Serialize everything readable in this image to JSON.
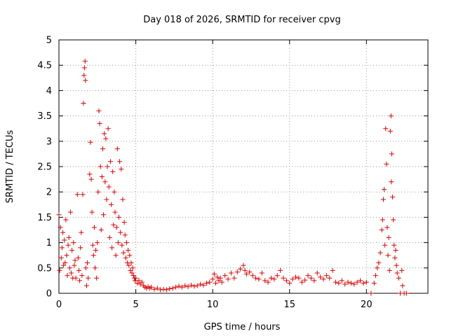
{
  "chart_data": {
    "type": "scatter",
    "title": "Day 018 of 2026, SRMTID for receiver cpvg",
    "xlabel": "GPS time / hours",
    "ylabel": "SRMTID / TECUs",
    "xlim": [
      0,
      24
    ],
    "ylim": [
      0,
      5
    ],
    "x_ticks": [
      0,
      5,
      10,
      15,
      20
    ],
    "x_tick_labels": [
      "0",
      "5",
      "10",
      "15",
      "20"
    ],
    "y_ticks": [
      0,
      0.5,
      1,
      1.5,
      2,
      2.5,
      3,
      3.5,
      4,
      4.5,
      5
    ],
    "y_tick_labels": [
      "0",
      "0.5",
      "1",
      "1.5",
      "2",
      "2.5",
      "3",
      "3.5",
      "4",
      "4.5",
      "5"
    ],
    "grid": true,
    "marker": "+",
    "color": "#e00000",
    "series": [
      {
        "name": "SRMTID",
        "points": [
          [
            0.0,
            1.55
          ],
          [
            0.05,
            0.45
          ],
          [
            0.1,
            1.3
          ],
          [
            0.15,
            0.7
          ],
          [
            0.2,
            0.9
          ],
          [
            0.25,
            1.2
          ],
          [
            0.3,
            0.55
          ],
          [
            0.35,
            1.05
          ],
          [
            0.4,
            0.6
          ],
          [
            0.45,
            1.45
          ],
          [
            0.5,
            0.75
          ],
          [
            0.55,
            0.35
          ],
          [
            0.6,
            0.95
          ],
          [
            0.65,
            1.1
          ],
          [
            0.7,
            0.5
          ],
          [
            0.75,
            1.6
          ],
          [
            0.8,
            0.4
          ],
          [
            0.85,
            0.85
          ],
          [
            0.9,
            0.3
          ],
          [
            0.95,
            1.0
          ],
          [
            1.0,
            0.55
          ],
          [
            1.05,
            0.65
          ],
          [
            1.1,
            0.3
          ],
          [
            1.2,
            1.95
          ],
          [
            1.25,
            0.7
          ],
          [
            1.3,
            0.45
          ],
          [
            1.35,
            0.25
          ],
          [
            1.4,
            0.9
          ],
          [
            1.45,
            1.2
          ],
          [
            1.5,
            0.35
          ],
          [
            1.55,
            1.95
          ],
          [
            1.6,
            3.75
          ],
          [
            1.63,
            4.3
          ],
          [
            1.66,
            4.45
          ],
          [
            1.7,
            4.58
          ],
          [
            1.72,
            4.2
          ],
          [
            1.75,
            0.5
          ],
          [
            1.8,
            0.15
          ],
          [
            1.85,
            0.6
          ],
          [
            1.9,
            0.3
          ],
          [
            2.0,
            2.35
          ],
          [
            2.05,
            2.98
          ],
          [
            2.1,
            2.25
          ],
          [
            2.15,
            1.6
          ],
          [
            2.2,
            0.95
          ],
          [
            2.25,
            0.75
          ],
          [
            2.3,
            1.3
          ],
          [
            2.35,
            0.5
          ],
          [
            2.4,
            0.85
          ],
          [
            2.45,
            0.3
          ],
          [
            2.5,
            1.0
          ],
          [
            2.55,
            2.0
          ],
          [
            2.6,
            3.6
          ],
          [
            2.65,
            3.35
          ],
          [
            2.7,
            2.5
          ],
          [
            2.75,
            1.25
          ],
          [
            2.8,
            2.3
          ],
          [
            2.85,
            2.85
          ],
          [
            2.9,
            1.55
          ],
          [
            2.95,
            3.15
          ],
          [
            3.0,
            2.2
          ],
          [
            3.05,
            3.05
          ],
          [
            3.1,
            1.85
          ],
          [
            3.15,
            2.5
          ],
          [
            3.2,
            3.25
          ],
          [
            3.25,
            2.1
          ],
          [
            3.3,
            1.1
          ],
          [
            3.35,
            2.6
          ],
          [
            3.4,
            1.75
          ],
          [
            3.45,
            0.9
          ],
          [
            3.5,
            2.4
          ],
          [
            3.55,
            1.35
          ],
          [
            3.6,
            2.0
          ],
          [
            3.65,
            1.6
          ],
          [
            3.7,
            0.75
          ],
          [
            3.75,
            1.3
          ],
          [
            3.8,
            2.85
          ],
          [
            3.85,
            1.0
          ],
          [
            3.9,
            1.5
          ],
          [
            3.95,
            2.6
          ],
          [
            4.0,
            1.2
          ],
          [
            4.05,
            2.45
          ],
          [
            4.1,
            0.95
          ],
          [
            4.15,
            1.85
          ],
          [
            4.2,
            0.8
          ],
          [
            4.25,
            1.4
          ],
          [
            4.3,
            1.15
          ],
          [
            4.35,
            0.7
          ],
          [
            4.4,
            1.0
          ],
          [
            4.45,
            0.6
          ],
          [
            4.5,
            0.85
          ],
          [
            4.55,
            0.55
          ],
          [
            4.6,
            0.75
          ],
          [
            4.65,
            0.45
          ],
          [
            4.7,
            0.6
          ],
          [
            4.75,
            0.4
          ],
          [
            4.8,
            0.5
          ],
          [
            4.85,
            0.35
          ],
          [
            4.9,
            0.3
          ],
          [
            4.95,
            0.25
          ],
          [
            5.0,
            0.3
          ],
          [
            5.1,
            0.2
          ],
          [
            5.2,
            0.25
          ],
          [
            5.3,
            0.18
          ],
          [
            5.4,
            0.22
          ],
          [
            5.5,
            0.15
          ],
          [
            5.6,
            0.12
          ],
          [
            5.7,
            0.1
          ],
          [
            5.8,
            0.13
          ],
          [
            5.9,
            0.1
          ],
          [
            6.0,
            0.12
          ],
          [
            6.2,
            0.08
          ],
          [
            6.4,
            0.1
          ],
          [
            6.6,
            0.07
          ],
          [
            6.8,
            0.08
          ],
          [
            7.0,
            0.07
          ],
          [
            7.2,
            0.09
          ],
          [
            7.4,
            0.1
          ],
          [
            7.6,
            0.12
          ],
          [
            7.8,
            0.14
          ],
          [
            8.0,
            0.12
          ],
          [
            8.2,
            0.15
          ],
          [
            8.4,
            0.13
          ],
          [
            8.6,
            0.16
          ],
          [
            8.8,
            0.14
          ],
          [
            9.0,
            0.15
          ],
          [
            9.2,
            0.18
          ],
          [
            9.4,
            0.16
          ],
          [
            9.6,
            0.2
          ],
          [
            9.8,
            0.22
          ],
          [
            10.0,
            0.28
          ],
          [
            10.1,
            0.38
          ],
          [
            10.2,
            0.2
          ],
          [
            10.3,
            0.32
          ],
          [
            10.4,
            0.25
          ],
          [
            10.5,
            0.3
          ],
          [
            10.6,
            0.22
          ],
          [
            10.8,
            0.35
          ],
          [
            11.0,
            0.28
          ],
          [
            11.2,
            0.4
          ],
          [
            11.4,
            0.3
          ],
          [
            11.6,
            0.42
          ],
          [
            11.8,
            0.48
          ],
          [
            12.0,
            0.55
          ],
          [
            12.1,
            0.45
          ],
          [
            12.2,
            0.38
          ],
          [
            12.4,
            0.42
          ],
          [
            12.6,
            0.35
          ],
          [
            12.8,
            0.3
          ],
          [
            13.0,
            0.28
          ],
          [
            13.2,
            0.4
          ],
          [
            13.4,
            0.25
          ],
          [
            13.6,
            0.22
          ],
          [
            13.8,
            0.3
          ],
          [
            14.0,
            0.28
          ],
          [
            14.2,
            0.35
          ],
          [
            14.4,
            0.45
          ],
          [
            14.6,
            0.3
          ],
          [
            14.8,
            0.25
          ],
          [
            15.0,
            0.2
          ],
          [
            15.2,
            0.28
          ],
          [
            15.4,
            0.32
          ],
          [
            15.6,
            0.3
          ],
          [
            15.8,
            0.22
          ],
          [
            16.0,
            0.26
          ],
          [
            16.2,
            0.35
          ],
          [
            16.4,
            0.3
          ],
          [
            16.6,
            0.25
          ],
          [
            16.8,
            0.4
          ],
          [
            17.0,
            0.32
          ],
          [
            17.2,
            0.28
          ],
          [
            17.4,
            0.35
          ],
          [
            17.6,
            0.3
          ],
          [
            17.8,
            0.45
          ],
          [
            18.0,
            0.22
          ],
          [
            18.2,
            0.2
          ],
          [
            18.4,
            0.25
          ],
          [
            18.6,
            0.18
          ],
          [
            18.8,
            0.22
          ],
          [
            19.0,
            0.2
          ],
          [
            19.2,
            0.18
          ],
          [
            19.4,
            0.22
          ],
          [
            19.6,
            0.25
          ],
          [
            19.8,
            0.2
          ],
          [
            20.0,
            0.22
          ],
          [
            20.3,
            0.0
          ],
          [
            20.5,
            0.2
          ],
          [
            20.6,
            0.35
          ],
          [
            20.7,
            0.5
          ],
          [
            20.8,
            0.6
          ],
          [
            20.9,
            0.8
          ],
          [
            21.0,
            1.25
          ],
          [
            21.05,
            1.45
          ],
          [
            21.1,
            1.85
          ],
          [
            21.15,
            2.05
          ],
          [
            21.2,
            0.95
          ],
          [
            21.25,
            3.25
          ],
          [
            21.3,
            2.55
          ],
          [
            21.35,
            1.3
          ],
          [
            21.4,
            0.75
          ],
          [
            21.45,
            1.1
          ],
          [
            21.5,
            0.45
          ],
          [
            21.55,
            3.2
          ],
          [
            21.6,
            3.5
          ],
          [
            21.62,
            2.2
          ],
          [
            21.65,
            2.75
          ],
          [
            21.7,
            1.9
          ],
          [
            21.75,
            1.45
          ],
          [
            21.8,
            0.95
          ],
          [
            21.85,
            0.7
          ],
          [
            21.9,
            0.85
          ],
          [
            21.95,
            0.55
          ],
          [
            22.0,
            0.4
          ],
          [
            22.1,
            0.3
          ],
          [
            22.2,
            0.0
          ],
          [
            22.3,
            0.45
          ],
          [
            22.35,
            0.15
          ],
          [
            22.45,
            0.0
          ],
          [
            22.6,
            0.0
          ]
        ]
      }
    ]
  }
}
